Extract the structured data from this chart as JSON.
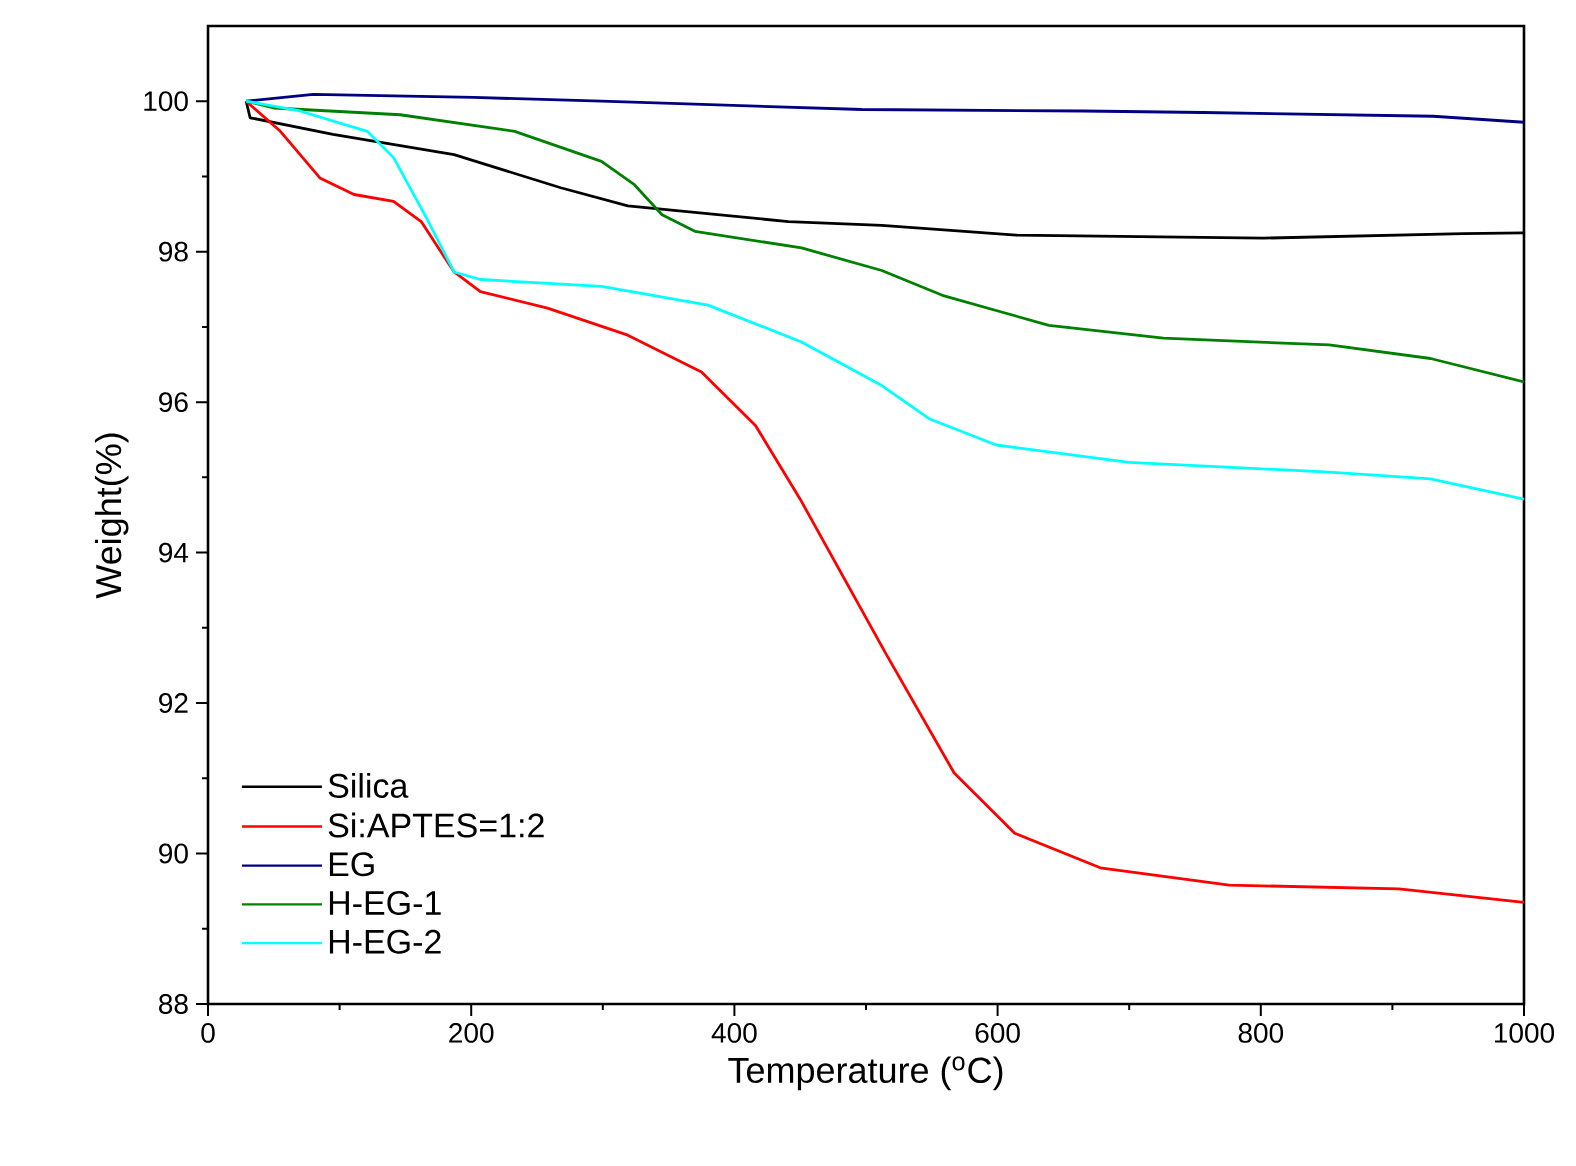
{
  "chart_data": {
    "type": "line",
    "xlabel": "Temperature ($^{o}$C)",
    "ylabel": "Weight(%)",
    "xlim": [
      0,
      1000
    ],
    "ylim": [
      88,
      101
    ],
    "xticks": [
      0,
      200,
      400,
      600,
      800,
      1000
    ],
    "yticks": [
      88,
      90,
      92,
      94,
      96,
      98,
      100
    ],
    "legend": "bottom left",
    "grid": false,
    "marker": "none",
    "line_style": "solid",
    "series": [
      {
        "name": "Silica",
        "color": "#000000",
        "x": [
          29,
          32,
          95,
          187,
          268,
          319,
          441,
          512,
          614,
          802,
          954,
          1000
        ],
        "values": [
          100.0,
          99.78,
          99.56,
          99.29,
          98.85,
          98.61,
          98.4,
          98.35,
          98.22,
          98.18,
          98.24,
          98.25
        ]
      },
      {
        "name": "Si:APTES=1:2",
        "color": "#ff0000",
        "x": [
          29,
          55,
          85,
          111,
          141,
          162,
          187,
          207,
          258,
          319,
          375,
          416,
          450,
          515,
          567,
          613,
          678,
          776,
          905,
          1000
        ],
        "values": [
          100.0,
          99.6,
          98.98,
          98.76,
          98.67,
          98.4,
          97.73,
          97.47,
          97.25,
          96.89,
          96.4,
          95.69,
          94.71,
          92.66,
          91.07,
          90.27,
          89.81,
          89.58,
          89.53,
          89.35
        ]
      },
      {
        "name": "EG",
        "color": "#000080",
        "x": [
          29,
          80,
          202,
          299,
          497,
          665,
          756,
          931,
          1000
        ],
        "values": [
          100.0,
          100.09,
          100.05,
          100.0,
          99.89,
          99.87,
          99.85,
          99.8,
          99.72
        ]
      },
      {
        "name": "H-EG-1",
        "color": "#008000",
        "x": [
          29,
          50,
          146,
          233,
          299,
          324,
          345,
          370,
          451,
          512,
          558,
          639,
          726,
          852,
          929,
          1000
        ],
        "values": [
          100.0,
          99.91,
          99.82,
          99.6,
          99.2,
          98.89,
          98.49,
          98.27,
          98.05,
          97.75,
          97.42,
          97.02,
          96.85,
          96.76,
          96.58,
          96.27
        ]
      },
      {
        "name": "H-EG-2",
        "color": "#00ffff",
        "x": [
          29,
          70,
          121,
          141,
          166,
          187,
          207,
          299,
          380,
          451,
          512,
          548,
          599,
          700,
          852,
          929,
          1000
        ],
        "values": [
          100.0,
          99.87,
          99.6,
          99.25,
          98.45,
          97.73,
          97.63,
          97.54,
          97.29,
          96.8,
          96.22,
          95.78,
          95.43,
          95.2,
          95.07,
          94.98,
          94.71
        ]
      }
    ]
  }
}
